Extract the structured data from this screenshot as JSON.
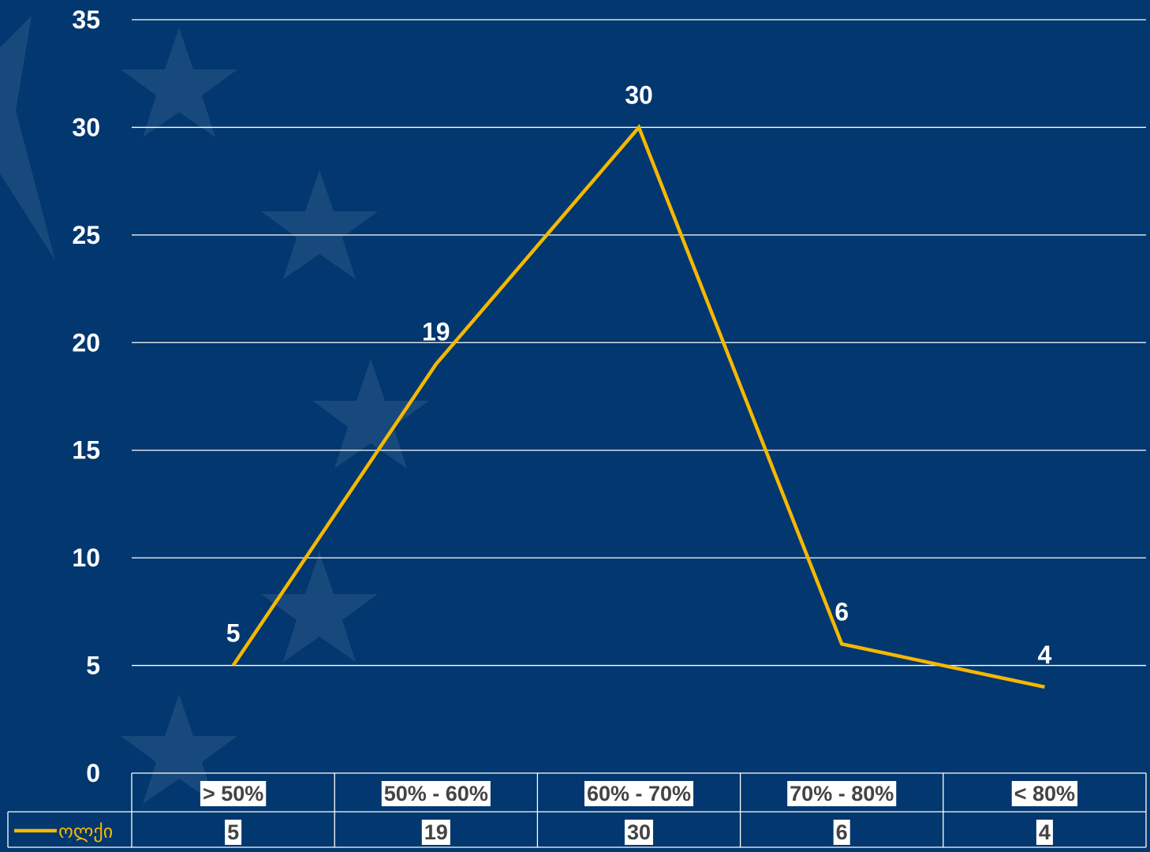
{
  "background_color": "#02376f",
  "line_color": "#f5b800",
  "grid_color": "#ffffff",
  "text_color": "#ffffff",
  "table_text_color": "#444444",
  "chart_data": {
    "type": "line",
    "title": "",
    "xlabel": "",
    "ylabel": "",
    "ylim": [
      0,
      35
    ],
    "y_ticks": [
      0,
      5,
      10,
      15,
      20,
      25,
      30,
      35
    ],
    "categories": [
      "> 50%",
      "50% - 60%",
      "60% - 70%",
      "70% - 80%",
      "< 80%"
    ],
    "series": [
      {
        "name": "ოლქი",
        "values": [
          5,
          19,
          30,
          6,
          4
        ],
        "color": "#f5b800"
      }
    ],
    "data_labels": true,
    "grid": true,
    "legend": "data-table-left",
    "data_table": true
  }
}
